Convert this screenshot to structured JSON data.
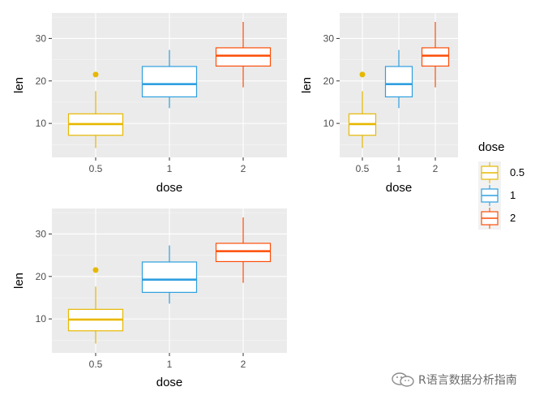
{
  "chart_data": [
    {
      "type": "box",
      "xlabel": "dose",
      "ylabel": "len",
      "categories": [
        "0.5",
        "1",
        "2"
      ],
      "ylim": [
        2,
        36
      ],
      "yticks": [
        10,
        20,
        30
      ],
      "grid": true,
      "boxes": [
        {
          "category": "0.5",
          "whisker_low": 4.2,
          "q1": 7.2,
          "median": 9.85,
          "q3": 12.25,
          "whisker_high": 17.6,
          "outliers": [
            21.5
          ],
          "color": "#E7B800"
        },
        {
          "category": "1",
          "whisker_low": 13.6,
          "q1": 16.25,
          "median": 19.25,
          "q3": 23.4,
          "whisker_high": 27.3,
          "outliers": [],
          "color": "#2E9FDF"
        },
        {
          "category": "2",
          "whisker_low": 18.5,
          "q1": 23.5,
          "median": 25.95,
          "q3": 27.8,
          "whisker_high": 33.9,
          "outliers": [],
          "color": "#FC4E07"
        }
      ]
    },
    {
      "type": "box",
      "xlabel": "dose",
      "ylabel": "len",
      "categories": [
        "0.5",
        "1",
        "2"
      ],
      "ylim": [
        2,
        36
      ],
      "yticks": [
        10,
        20,
        30
      ],
      "grid": true,
      "boxes": [
        {
          "category": "0.5",
          "whisker_low": 4.2,
          "q1": 7.2,
          "median": 9.85,
          "q3": 12.25,
          "whisker_high": 17.6,
          "outliers": [
            21.5
          ],
          "color": "#E7B800"
        },
        {
          "category": "1",
          "whisker_low": 13.6,
          "q1": 16.25,
          "median": 19.25,
          "q3": 23.4,
          "whisker_high": 27.3,
          "outliers": [],
          "color": "#2E9FDF"
        },
        {
          "category": "2",
          "whisker_low": 18.5,
          "q1": 23.5,
          "median": 25.95,
          "q3": 27.8,
          "whisker_high": 33.9,
          "outliers": [],
          "color": "#FC4E07"
        }
      ]
    },
    {
      "type": "box",
      "xlabel": "dose",
      "ylabel": "len",
      "categories": [
        "0.5",
        "1",
        "2"
      ],
      "ylim": [
        2,
        36
      ],
      "yticks": [
        10,
        20,
        30
      ],
      "grid": true,
      "boxes": [
        {
          "category": "0.5",
          "whisker_low": 4.2,
          "q1": 7.2,
          "median": 9.85,
          "q3": 12.25,
          "whisker_high": 17.6,
          "outliers": [
            21.5
          ],
          "color": "#E7B800"
        },
        {
          "category": "1",
          "whisker_low": 13.6,
          "q1": 16.25,
          "median": 19.25,
          "q3": 23.4,
          "whisker_high": 27.3,
          "outliers": [],
          "color": "#2E9FDF"
        },
        {
          "category": "2",
          "whisker_low": 18.5,
          "q1": 23.5,
          "median": 25.95,
          "q3": 27.8,
          "whisker_high": 33.9,
          "outliers": [],
          "color": "#FC4E07"
        }
      ]
    }
  ],
  "legend": {
    "title": "dose",
    "items": [
      {
        "label": "0.5",
        "color": "#E7B800"
      },
      {
        "label": "1",
        "color": "#2E9FDF"
      },
      {
        "label": "2",
        "color": "#FC4E07"
      }
    ]
  },
  "colors": {
    "panel_background": "#EBEBEB",
    "grid_major": "#FFFFFF",
    "axis_text": "#4D4D4D",
    "axis_title": "#000000"
  },
  "watermark": {
    "text": "R语言数据分析指南",
    "icon": "wechat-icon"
  }
}
